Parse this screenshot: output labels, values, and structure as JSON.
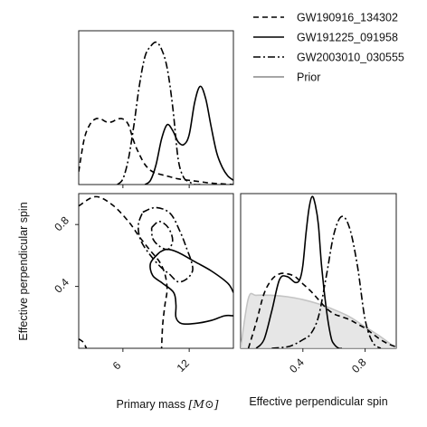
{
  "chart_data": {
    "type": "corner",
    "legend": {
      "placement": "top-right",
      "entries": [
        {
          "label": "GW190916_134302",
          "style": "dashed",
          "color": "#000000"
        },
        {
          "label": "GW191225_091958",
          "style": "solid",
          "color": "#000000"
        },
        {
          "label": "GW2003010_030555",
          "style": "dashdot",
          "color": "#000000"
        },
        {
          "label": "Prior",
          "style": "solid",
          "color": "#888888"
        }
      ]
    },
    "x_axis": {
      "label": "Primary mass",
      "unit": "[M⊙]",
      "range": [
        2,
        16
      ],
      "ticks": [
        {
          "value": 6,
          "label": "6"
        },
        {
          "value": 12,
          "label": "12"
        }
      ]
    },
    "spin_axis": {
      "label": "Effective perpendicular spin",
      "range": [
        0,
        1
      ],
      "ticks": [
        {
          "value": 0.4,
          "label": "0.4"
        },
        {
          "value": 0.8,
          "label": "0.8"
        }
      ]
    },
    "mass_marginals": [
      {
        "name": "GW190916_134302",
        "style": "dashed",
        "x": [
          2.0,
          2.5,
          3.0,
          3.5,
          4.0,
          4.5,
          5.0,
          5.5,
          6.0,
          6.5,
          7.0,
          7.5,
          8.0,
          8.5,
          9.0,
          10.0,
          11.0,
          12.0,
          13.0,
          14.0,
          16.0
        ],
        "y": [
          0.09,
          0.32,
          0.42,
          0.46,
          0.46,
          0.44,
          0.44,
          0.46,
          0.46,
          0.42,
          0.3,
          0.21,
          0.14,
          0.1,
          0.08,
          0.06,
          0.04,
          0.03,
          0.02,
          0.01,
          0.0
        ]
      },
      {
        "name": "GW191225_091958",
        "style": "solid",
        "x": [
          8.0,
          8.5,
          9.0,
          9.5,
          10.0,
          10.5,
          11.0,
          11.5,
          12.0,
          12.5,
          13.0,
          13.5,
          14.0,
          14.5,
          15.0,
          15.5,
          16.0
        ],
        "y": [
          0.0,
          0.03,
          0.14,
          0.32,
          0.42,
          0.38,
          0.3,
          0.28,
          0.35,
          0.58,
          0.69,
          0.6,
          0.4,
          0.22,
          0.12,
          0.06,
          0.03
        ]
      },
      {
        "name": "GW2003010_030555",
        "style": "dashdot",
        "x": [
          5.5,
          6.0,
          6.5,
          7.0,
          7.5,
          8.0,
          8.5,
          9.0,
          9.5,
          10.0,
          10.5,
          11.0,
          11.5,
          12.0,
          12.5,
          13.0
        ],
        "y": [
          0.0,
          0.04,
          0.18,
          0.42,
          0.7,
          0.9,
          0.97,
          1.0,
          0.95,
          0.82,
          0.55,
          0.18,
          0.05,
          0.02,
          0.0,
          0.0
        ]
      }
    ],
    "spin_marginals": [
      {
        "name": "GW190916_134302",
        "style": "dashed",
        "x": [
          0.05,
          0.1,
          0.15,
          0.2,
          0.25,
          0.3,
          0.35,
          0.4,
          0.45,
          0.5,
          0.55,
          0.6,
          0.65,
          0.7,
          0.75,
          0.8,
          0.85,
          0.9,
          0.95,
          1.0
        ],
        "y": [
          0.0,
          0.18,
          0.38,
          0.48,
          0.52,
          0.52,
          0.5,
          0.45,
          0.4,
          0.34,
          0.28,
          0.24,
          0.22,
          0.2,
          0.17,
          0.14,
          0.1,
          0.06,
          0.03,
          0.01
        ]
      },
      {
        "name": "GW191225_091958",
        "style": "solid",
        "x": [
          0.1,
          0.15,
          0.2,
          0.25,
          0.3,
          0.35,
          0.38,
          0.4,
          0.42,
          0.44,
          0.46,
          0.48,
          0.5,
          0.52,
          0.55,
          0.58,
          0.6,
          0.63,
          0.65
        ],
        "y": [
          0.0,
          0.06,
          0.26,
          0.48,
          0.5,
          0.46,
          0.48,
          0.58,
          0.8,
          0.98,
          1.06,
          1.0,
          0.86,
          0.58,
          0.28,
          0.08,
          0.03,
          0.0,
          0.0
        ]
      },
      {
        "name": "GW2003010_030555",
        "style": "dashdot",
        "x": [
          0.2,
          0.3,
          0.35,
          0.4,
          0.45,
          0.5,
          0.55,
          0.6,
          0.65,
          0.7,
          0.75,
          0.8,
          0.85,
          0.9
        ],
        "y": [
          0.0,
          0.01,
          0.03,
          0.06,
          0.1,
          0.22,
          0.5,
          0.8,
          0.92,
          0.84,
          0.58,
          0.2,
          0.04,
          0.0
        ]
      },
      {
        "name": "Prior",
        "style": "filled",
        "x": [
          0.0,
          0.05,
          0.1,
          0.2,
          0.3,
          0.4,
          0.5,
          0.6,
          0.7,
          0.8,
          0.9,
          1.0
        ],
        "y": [
          0.0,
          0.35,
          0.37,
          0.37,
          0.36,
          0.34,
          0.31,
          0.27,
          0.22,
          0.15,
          0.08,
          0.0
        ]
      }
    ],
    "joint_contours": [
      {
        "name": "GW190916_134302",
        "style": "dashed",
        "contours": [
          [
            [
              2.0,
              0.92
            ],
            [
              3.5,
              0.98
            ],
            [
              5.0,
              0.93
            ],
            [
              6.5,
              0.82
            ],
            [
              7.5,
              0.72
            ],
            [
              8.5,
              0.63
            ],
            [
              9.3,
              0.56
            ],
            [
              9.8,
              0.48
            ],
            [
              10.0,
              0.38
            ],
            [
              9.8,
              0.28
            ],
            [
              9.6,
              0.15
            ],
            [
              9.5,
              0.0
            ]
          ],
          [
            [
              2.0,
              0.06
            ],
            [
              2.4,
              0.04
            ],
            [
              2.7,
              0.0
            ]
          ]
        ]
      },
      {
        "name": "GW191225_091958",
        "style": "solid",
        "contours": [
          [
            [
              9.3,
              0.62
            ],
            [
              10.0,
              0.64
            ],
            [
              11.0,
              0.62
            ],
            [
              12.5,
              0.56
            ],
            [
              14.0,
              0.5
            ],
            [
              15.5,
              0.42
            ],
            [
              16.0,
              0.36
            ]
          ],
          [
            [
              16.0,
              0.21
            ],
            [
              15.2,
              0.21
            ],
            [
              14.0,
              0.18
            ],
            [
              12.5,
              0.16
            ],
            [
              11.3,
              0.16
            ],
            [
              10.8,
              0.2
            ],
            [
              10.8,
              0.28
            ],
            [
              10.6,
              0.36
            ],
            [
              9.6,
              0.42
            ],
            [
              8.7,
              0.47
            ],
            [
              8.5,
              0.55
            ],
            [
              9.3,
              0.62
            ]
          ]
        ]
      },
      {
        "name": "GW2003010_030555",
        "style": "dashdot",
        "contours": [
          [
            [
              7.8,
              0.88
            ],
            [
              9.0,
              0.91
            ],
            [
              10.3,
              0.87
            ],
            [
              11.2,
              0.75
            ],
            [
              11.8,
              0.64
            ],
            [
              12.2,
              0.56
            ],
            [
              12.3,
              0.5
            ],
            [
              11.8,
              0.45
            ],
            [
              11.0,
              0.43
            ],
            [
              10.2,
              0.48
            ],
            [
              9.5,
              0.52
            ],
            [
              8.5,
              0.6
            ],
            [
              7.6,
              0.7
            ],
            [
              7.4,
              0.8
            ],
            [
              7.8,
              0.88
            ]
          ],
          [
            [
              8.6,
              0.78
            ],
            [
              9.3,
              0.82
            ],
            [
              10.1,
              0.78
            ],
            [
              10.5,
              0.7
            ],
            [
              10.1,
              0.64
            ],
            [
              9.3,
              0.66
            ],
            [
              8.7,
              0.71
            ],
            [
              8.6,
              0.78
            ]
          ]
        ]
      }
    ]
  }
}
